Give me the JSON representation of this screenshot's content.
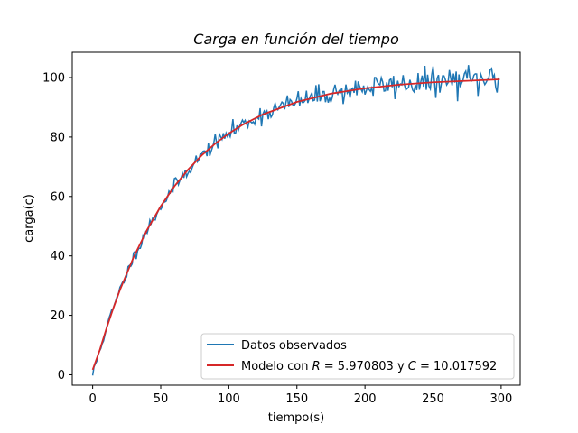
{
  "chart_data": {
    "type": "line",
    "title": "Carga en función del tiempo",
    "xlabel": "tiempo(s)",
    "ylabel": "carga(c)",
    "xlim": [
      -15,
      314
    ],
    "ylim": [
      -3.5,
      108.5
    ],
    "xticks": [
      0,
      50,
      100,
      150,
      200,
      250,
      300
    ],
    "yticks": [
      0,
      20,
      40,
      60,
      80,
      100
    ],
    "grid": false,
    "legend_placement": "lower-right",
    "observed": {
      "name": "Datos observados",
      "color": "#1f77b4",
      "model": {
        "A": 100,
        "tau": 59.8,
        "noise_start": 0.8,
        "noise_end": 2.6,
        "seed": 11
      },
      "t_start": 0,
      "t_end": 298,
      "t_step": 1
    },
    "model_series": {
      "color": "#d62728",
      "label_parts": {
        "prefix": "Modelo con ",
        "r_sym": "R",
        "eq1": " = 5.970803 y ",
        "c_sym": "C",
        "eq2": " = 10.017592"
      },
      "x": [
        0,
        5,
        10,
        15,
        20,
        30,
        40,
        50,
        60,
        70,
        80,
        90,
        100,
        110,
        125,
        150,
        175,
        200,
        225,
        250,
        275,
        299
      ],
      "y": [
        1.7,
        8.0,
        15.4,
        22.2,
        28.5,
        39.5,
        48.8,
        56.7,
        63.4,
        69.0,
        73.8,
        77.8,
        81.2,
        84.1,
        87.6,
        91.8,
        94.6,
        96.4,
        97.6,
        98.4,
        98.9,
        99.4
      ]
    }
  }
}
